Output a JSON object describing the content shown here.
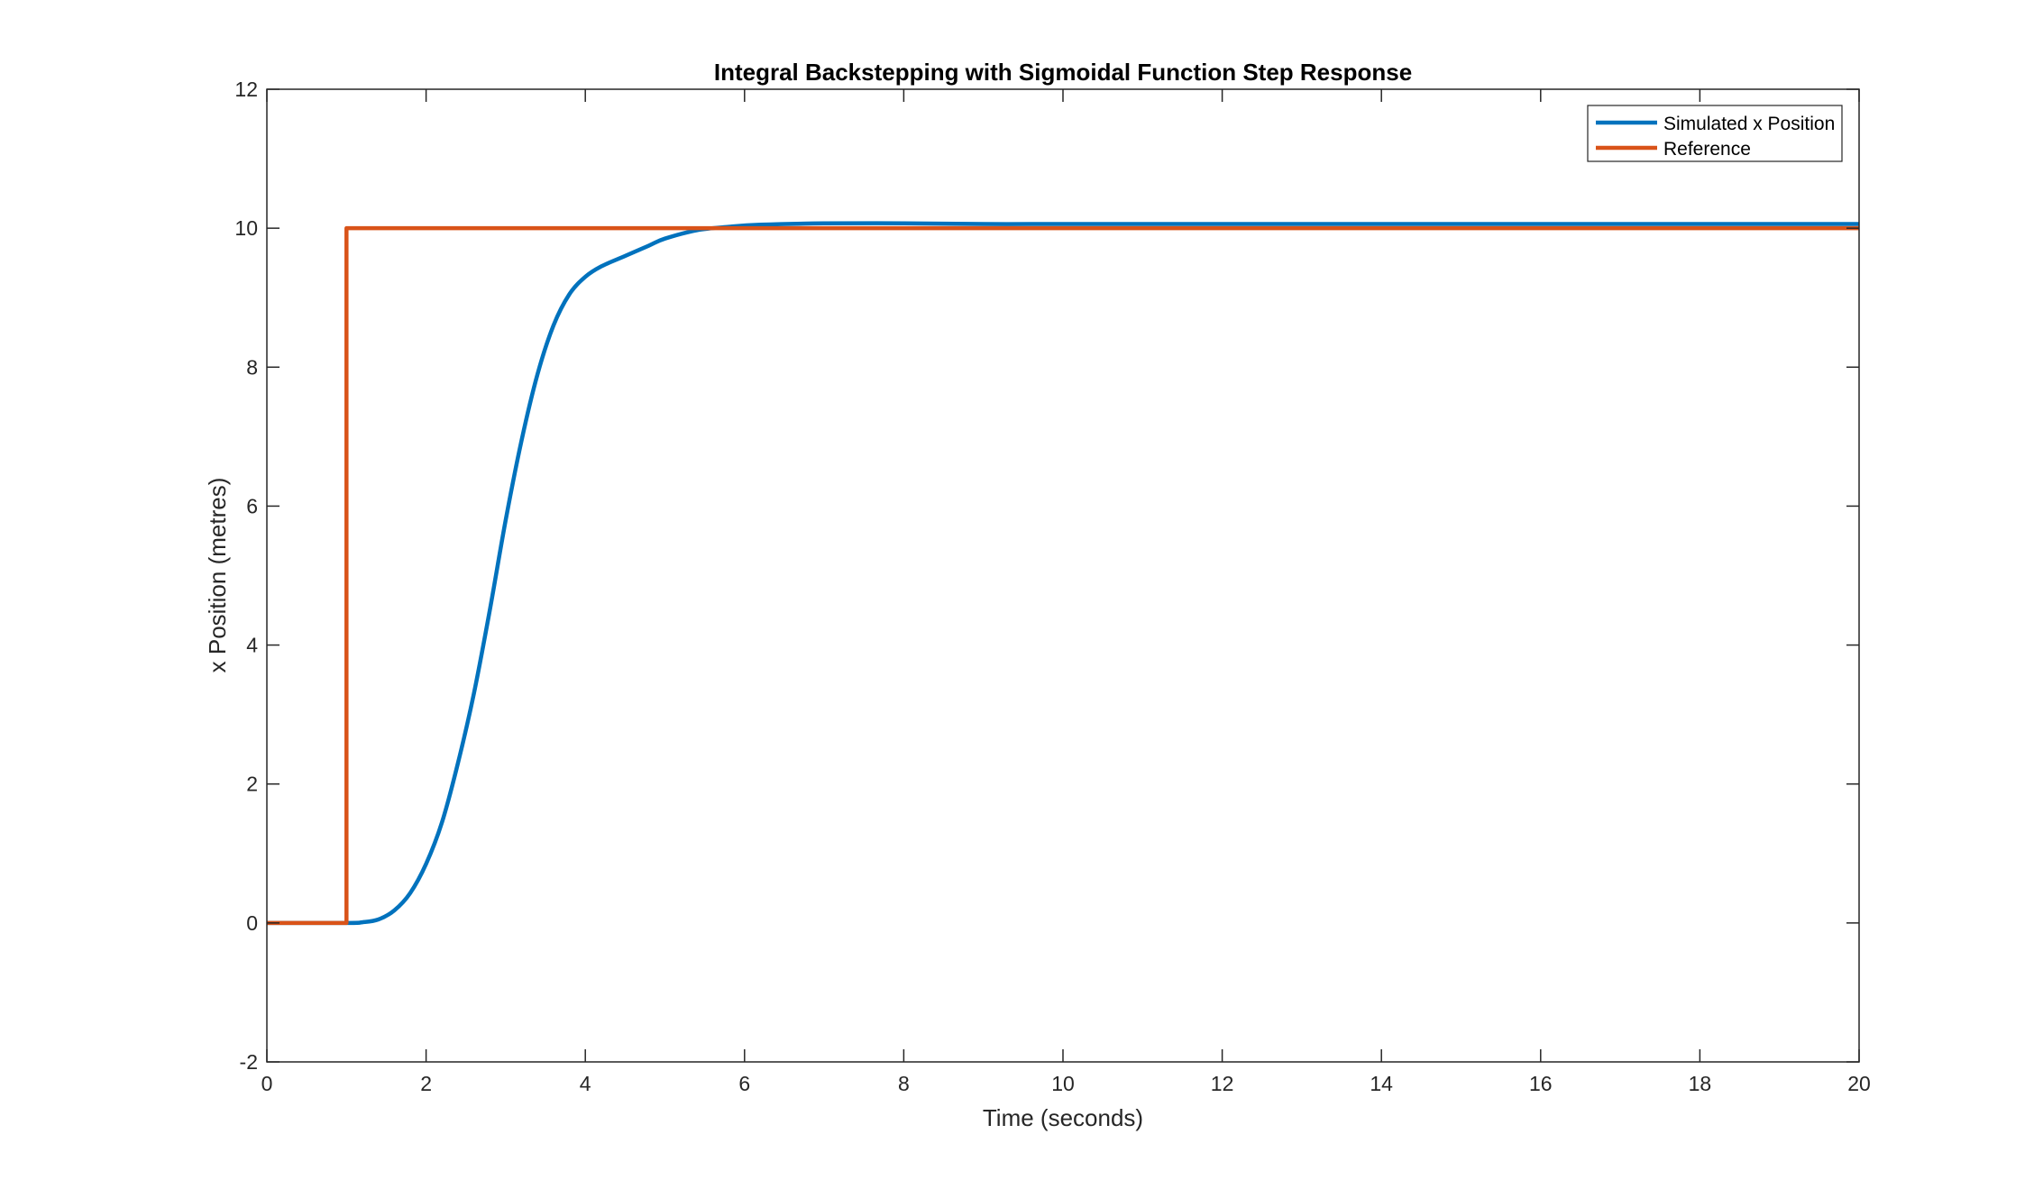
{
  "chart_data": {
    "type": "line",
    "title": "Integral Backstepping with Sigmoidal Function Step Response",
    "xlabel": "Time (seconds)",
    "ylabel": "x Position (metres)",
    "xlim": [
      0,
      20
    ],
    "ylim": [
      -2,
      12
    ],
    "xticks": [
      0,
      2,
      4,
      6,
      8,
      10,
      12,
      14,
      16,
      18,
      20
    ],
    "yticks": [
      -2,
      0,
      2,
      4,
      6,
      8,
      10,
      12
    ],
    "grid": false,
    "legend_position": "top-right",
    "series": [
      {
        "name": "Simulated x Position",
        "color": "#0072BD",
        "x": [
          0,
          1.0,
          1.2,
          1.4,
          1.6,
          1.8,
          2.0,
          2.2,
          2.4,
          2.6,
          2.8,
          3.0,
          3.2,
          3.4,
          3.6,
          3.8,
          4.0,
          4.2,
          4.5,
          4.8,
          5.0,
          5.4,
          5.8,
          6.2,
          7.0,
          8.0,
          9.0,
          10.0,
          12.0,
          14.0,
          16.0,
          18.0,
          20.0
        ],
        "y": [
          0,
          0,
          0.01,
          0.05,
          0.18,
          0.43,
          0.85,
          1.45,
          2.3,
          3.3,
          4.5,
          5.8,
          6.95,
          7.9,
          8.6,
          9.05,
          9.3,
          9.45,
          9.6,
          9.75,
          9.85,
          9.97,
          10.02,
          10.05,
          10.07,
          10.07,
          10.06,
          10.06,
          10.06,
          10.06,
          10.06,
          10.06,
          10.06
        ]
      },
      {
        "name": "Reference",
        "color": "#D95319",
        "x": [
          0,
          1.0,
          1.0,
          20.0
        ],
        "y": [
          0,
          0,
          10,
          10
        ]
      }
    ]
  }
}
